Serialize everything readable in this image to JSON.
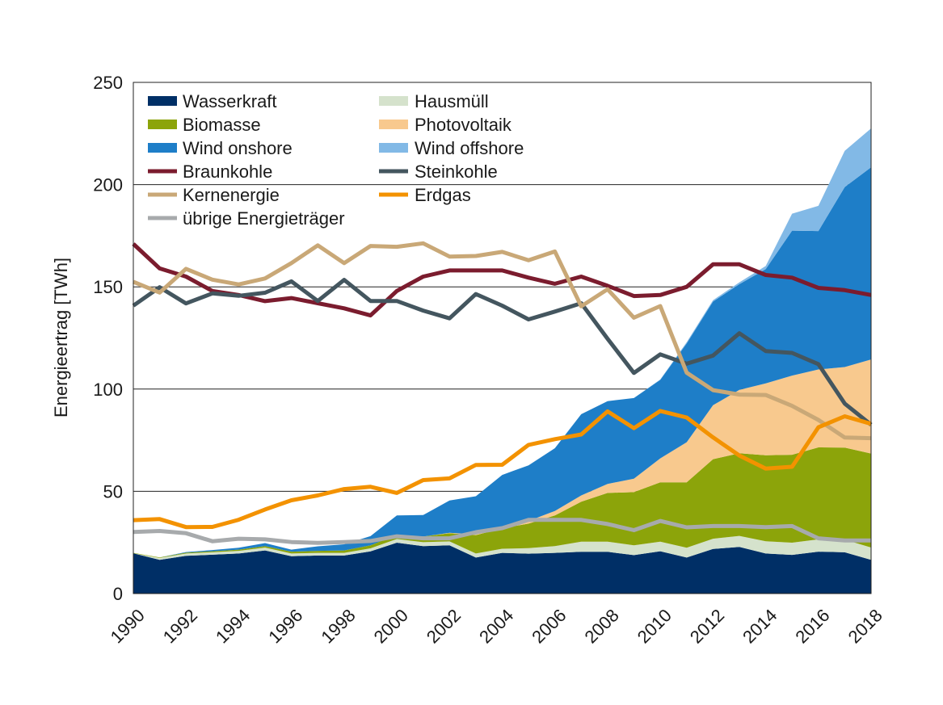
{
  "chart_data": {
    "type": "area",
    "ylabel": "Energieertrag  [TWh]",
    "ylim": [
      0,
      250
    ],
    "yticks": [
      0,
      50,
      100,
      150,
      200,
      250
    ],
    "xlim": [
      1990,
      2018
    ],
    "xticks": [
      1990,
      1992,
      1994,
      1996,
      1998,
      2000,
      2002,
      2004,
      2006,
      2008,
      2010,
      2012,
      2014,
      2016,
      2018
    ],
    "grid": "horizontal",
    "legend_placement": "top-left",
    "x": [
      1990,
      1991,
      1992,
      1993,
      1994,
      1995,
      1996,
      1997,
      1998,
      1999,
      2000,
      2001,
      2002,
      2003,
      2004,
      2005,
      2006,
      2007,
      2008,
      2009,
      2010,
      2011,
      2012,
      2013,
      2014,
      2015,
      2016,
      2017,
      2018
    ],
    "stacked_series": [
      {
        "name": "Wasserkraft",
        "color": "#002f66",
        "values": [
          19.7,
          16.5,
          18.5,
          19,
          19.6,
          21.1,
          18.3,
          18.6,
          18.6,
          20.6,
          24.9,
          23.2,
          23.6,
          17.6,
          19.9,
          19.5,
          19.9,
          20.4,
          20.4,
          18.8,
          20.7,
          17.6,
          21.8,
          22.8,
          19.6,
          18.9,
          20.5,
          20.2,
          16.5
        ]
      },
      {
        "name": "Hausmüll",
        "color": "#d5e2cc",
        "values": [
          0,
          0.9,
          1.1,
          1.2,
          1.3,
          1.4,
          1.3,
          1.3,
          1.3,
          1.5,
          1.8,
          1.9,
          1.9,
          2,
          2,
          2.7,
          3.3,
          5,
          5,
          4.8,
          4.7,
          4.8,
          5,
          5.4,
          6,
          6,
          6,
          6.2,
          6
        ]
      },
      {
        "name": "Biomasse",
        "color": "#8ca40a",
        "values": [
          0.2,
          0.3,
          0.4,
          0.5,
          0.6,
          0.7,
          0.9,
          1,
          1.2,
          1.5,
          2,
          2.8,
          4,
          9,
          10,
          12,
          15,
          19.5,
          23.8,
          26,
          29,
          32,
          38.9,
          40.4,
          42,
          43,
          45,
          45,
          46
        ]
      },
      {
        "name": "Photovoltaik",
        "color": "#f8c98e",
        "values": [
          0,
          0,
          0,
          0,
          0,
          0,
          0,
          0,
          0,
          0,
          0,
          0,
          0.2,
          0.3,
          0.6,
          1.3,
          2.2,
          3.1,
          4.4,
          6.6,
          11.7,
          19.6,
          26.4,
          31,
          35.2,
          38.7,
          38.1,
          39.4,
          46
        ]
      },
      {
        "name": "Wind onshore",
        "color": "#1e7ec8",
        "values": [
          0,
          0,
          0.3,
          0.6,
          0.9,
          1.5,
          1,
          2.2,
          3,
          4.5,
          9.5,
          10.5,
          15.8,
          18.7,
          25.5,
          27.2,
          30.7,
          39.7,
          40.5,
          39.4,
          38.4,
          48.3,
          50.7,
          51.7,
          55.9,
          70.9,
          67.7,
          88,
          94
        ]
      },
      {
        "name": "Wind offshore",
        "color": "#82b9e6",
        "values": [
          0,
          0,
          0,
          0,
          0,
          0,
          0,
          0,
          0,
          0,
          0,
          0,
          0,
          0,
          0,
          0,
          0,
          0,
          0,
          0,
          0.2,
          0.6,
          0.7,
          0.9,
          1.5,
          8.3,
          12.3,
          17.7,
          19
        ]
      }
    ],
    "line_series": [
      {
        "name": "Braunkohle",
        "color": "#7b1c2e",
        "values": [
          171,
          159,
          155,
          148,
          146,
          143,
          144.5,
          142,
          139.5,
          136,
          148,
          155,
          158,
          158,
          158,
          154.5,
          151.5,
          155,
          150.5,
          145.5,
          146,
          150,
          161,
          161,
          155.8,
          154.5,
          149.5,
          148.4,
          146
        ]
      },
      {
        "name": "Steinkohle",
        "color": "#44565f",
        "values": [
          140.8,
          149.8,
          141.9,
          146.8,
          145.6,
          147.1,
          152.7,
          143.1,
          153.4,
          143.1,
          143.1,
          138.4,
          134.6,
          146.5,
          140.8,
          134.1,
          137.9,
          142,
          124.6,
          107.9,
          117,
          112.4,
          116.4,
          127.3,
          118.6,
          117.7,
          112.2,
          92.9,
          82.6
        ]
      },
      {
        "name": "Kernenergie",
        "color": "#c9a877",
        "values": [
          152.5,
          147.2,
          158.8,
          153.5,
          151.2,
          154.1,
          161.6,
          170.3,
          161.6,
          170,
          169.6,
          171.3,
          164.8,
          165.1,
          167.1,
          163,
          167.3,
          140.5,
          148.8,
          134.9,
          140.6,
          108,
          99.5,
          97.3,
          97.1,
          91.8,
          84.9,
          76.3,
          76
        ]
      },
      {
        "name": "Erdgas",
        "color": "#f39200",
        "values": [
          35.9,
          36.4,
          32.5,
          32.6,
          36.1,
          41.1,
          45.6,
          48,
          51.1,
          52.2,
          49.2,
          55.5,
          56.3,
          62.9,
          63,
          72.7,
          75.5,
          77.8,
          89.1,
          80.9,
          89.3,
          86.1,
          76.4,
          67.5,
          61.1,
          62,
          81.3,
          86.7,
          83
        ]
      },
      {
        "name": "übrige Energieträger",
        "color": "#a7aaac",
        "values": [
          30.1,
          30.6,
          29.5,
          25.6,
          26.8,
          26.5,
          25.2,
          24.8,
          25.2,
          25.7,
          28,
          27,
          27,
          30,
          32,
          36,
          36,
          36,
          34,
          31,
          35.5,
          32.4,
          33,
          33,
          32.5,
          33,
          27,
          26,
          26
        ]
      }
    ],
    "legend_left": [
      "Wasserkraft",
      "Biomasse",
      "Wind onshore",
      "Braunkohle",
      "Kernenergie",
      "übrige Energieträger"
    ],
    "legend_right": [
      "Hausmüll",
      "Photovoltaik",
      "Wind offshore",
      "Steinkohle",
      "Erdgas"
    ]
  }
}
